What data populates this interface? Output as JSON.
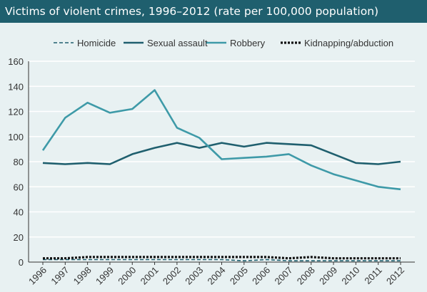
{
  "chart_data": {
    "type": "line",
    "title": "Victims of violent crimes, 1996–2012 (rate per 100,000 population)",
    "xlabel": "",
    "ylabel": "",
    "x": [
      "1996",
      "1997",
      "1998",
      "1999",
      "2000",
      "2001",
      "2002",
      "2003",
      "2004",
      "2005",
      "2006",
      "2007",
      "2008",
      "2009",
      "2010",
      "2011",
      "2012"
    ],
    "ylim": [
      0,
      160
    ],
    "yticks": [
      0,
      20,
      40,
      60,
      80,
      100,
      120,
      140,
      160
    ],
    "grid": true,
    "legend_position": "top",
    "series": [
      {
        "name": "Homicide",
        "color": "#1f5f6e",
        "style": "dashed",
        "values": [
          2,
          2,
          2,
          2,
          2,
          2,
          2,
          2,
          2,
          1,
          2,
          1,
          1,
          1,
          1,
          1,
          1
        ]
      },
      {
        "name": "Sexual assault",
        "color": "#1f5f6e",
        "style": "solid",
        "values": [
          79,
          78,
          79,
          78,
          86,
          91,
          95,
          91,
          95,
          92,
          95,
          94,
          93,
          86,
          79,
          78,
          80
        ]
      },
      {
        "name": "Robbery",
        "color": "#3e9aa8",
        "style": "solid",
        "values": [
          89,
          115,
          127,
          119,
          122,
          137,
          107,
          99,
          82,
          83,
          84,
          86,
          77,
          70,
          65,
          60,
          58
        ]
      },
      {
        "name": "Kidnapping/abduction",
        "color": "#111111",
        "style": "dotted",
        "values": [
          3,
          3,
          4,
          4,
          4,
          4,
          4,
          4,
          4,
          4,
          4,
          3,
          4,
          3,
          3,
          3,
          3
        ]
      }
    ]
  }
}
